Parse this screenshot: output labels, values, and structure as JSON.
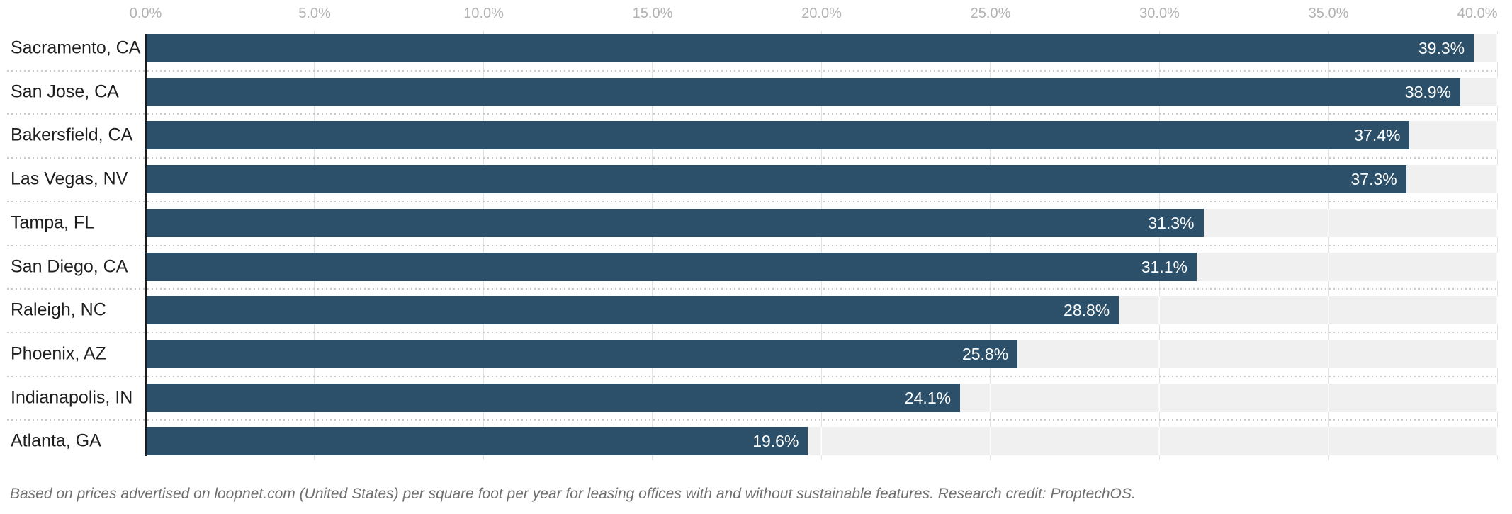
{
  "chart_data": {
    "type": "bar",
    "orientation": "horizontal",
    "title": "",
    "xlabel": "",
    "ylabel": "",
    "categories": [
      "Sacramento, CA",
      "San Jose, CA",
      "Bakersfield, CA",
      "Las Vegas, NV",
      "Tampa, FL",
      "San Diego, CA",
      "Raleigh, NC",
      "Phoenix, AZ",
      "Indianapolis, IN",
      "Atlanta, GA"
    ],
    "values": [
      39.3,
      38.9,
      37.4,
      37.3,
      31.3,
      31.1,
      28.8,
      25.8,
      24.1,
      19.6
    ],
    "value_labels": [
      "39.3%",
      "38.9%",
      "37.4%",
      "37.3%",
      "31.3%",
      "31.1%",
      "28.8%",
      "25.8%",
      "24.1%",
      "19.6%"
    ],
    "x_ticks": [
      "0.0%",
      "5.0%",
      "10.0%",
      "15.0%",
      "20.0%",
      "25.0%",
      "30.0%",
      "35.0%",
      "40.0%"
    ],
    "xlim": [
      0,
      40
    ],
    "grid": "vertical",
    "legend_position": "none",
    "footnote": "Based on prices advertised on loopnet.com (United States) per square foot per year for leasing offices with and without sustainable features. Research credit: ProptechOS."
  },
  "colors": {
    "background": "#ffffff",
    "bar": "#2c5069",
    "track": "#f0f0f0",
    "gridline": "#e3e3e3",
    "axis_line": "#1c1c1c",
    "tick_label": "#b2b2b2",
    "category_label": "#1e1e1e",
    "value_label": "#ffffff",
    "separator": "#c9c9c9",
    "footnote": "#6f6f6f"
  }
}
